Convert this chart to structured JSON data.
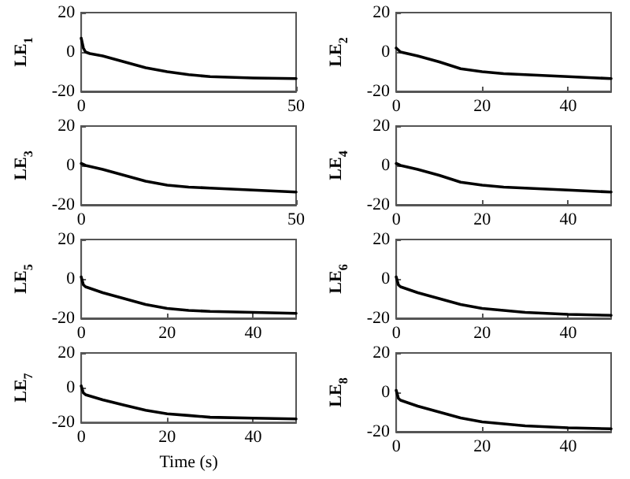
{
  "chart_data": [
    {
      "type": "line",
      "ylabel": "LE$_{1}$",
      "xlim": [
        0,
        50
      ],
      "xticks": [
        0,
        50
      ],
      "ylim": [
        -20,
        20
      ],
      "yticks": [
        -20,
        0,
        20
      ],
      "grid": false,
      "marker": "none",
      "x": [
        0,
        0.5,
        1,
        2,
        5,
        10,
        15,
        20,
        25,
        30,
        40,
        50
      ],
      "series": [
        {
          "color": "#000000",
          "values": [
            7,
            2,
            0,
            -0.8,
            -2,
            -5,
            -8,
            -10,
            -11.5,
            -12.5,
            -13.2,
            -13.5
          ]
        }
      ]
    },
    {
      "type": "line",
      "ylabel": "LE$_{2}$",
      "xlim": [
        0,
        50
      ],
      "xticks": [
        0,
        20,
        40
      ],
      "ylim": [
        -20,
        20
      ],
      "yticks": [
        -20,
        0,
        20
      ],
      "grid": false,
      "marker": "none",
      "x": [
        0,
        1,
        5,
        10,
        15,
        20,
        25,
        30,
        40,
        50
      ],
      "series": [
        {
          "color": "#000000",
          "values": [
            2,
            0,
            -2,
            -5,
            -8.5,
            -10,
            -11,
            -11.5,
            -12.5,
            -13.5
          ]
        }
      ]
    },
    {
      "type": "line",
      "ylabel": "LE$_{3}$",
      "xlim": [
        0,
        50
      ],
      "xticks": [
        0,
        50
      ],
      "ylim": [
        -20,
        20
      ],
      "yticks": [
        -20,
        0,
        20
      ],
      "grid": false,
      "marker": "none",
      "x": [
        0,
        1,
        5,
        10,
        15,
        20,
        25,
        30,
        40,
        50
      ],
      "series": [
        {
          "color": "#000000",
          "values": [
            1,
            0,
            -2,
            -5,
            -8,
            -10,
            -11,
            -11.5,
            -12.5,
            -13.5
          ]
        }
      ]
    },
    {
      "type": "line",
      "ylabel": "LE$_{4}$",
      "xlim": [
        0,
        50
      ],
      "xticks": [
        0,
        20,
        40
      ],
      "ylim": [
        -20,
        20
      ],
      "yticks": [
        -20,
        0,
        20
      ],
      "grid": false,
      "marker": "none",
      "x": [
        0,
        1,
        5,
        10,
        15,
        20,
        25,
        30,
        40,
        50
      ],
      "series": [
        {
          "color": "#000000",
          "values": [
            1,
            0,
            -2,
            -5,
            -8.5,
            -10,
            -11,
            -11.5,
            -12.5,
            -13.5
          ]
        }
      ]
    },
    {
      "type": "line",
      "ylabel": "LE$_{5}$",
      "xlim": [
        0,
        50
      ],
      "xticks": [
        0,
        20,
        40
      ],
      "ylim": [
        -20,
        20
      ],
      "yticks": [
        -20,
        0,
        20
      ],
      "grid": false,
      "marker": "none",
      "x": [
        0,
        0.5,
        1,
        5,
        10,
        15,
        20,
        25,
        30,
        40,
        50
      ],
      "series": [
        {
          "color": "#000000",
          "values": [
            1,
            -3,
            -4,
            -7,
            -10,
            -13,
            -15,
            -16,
            -16.5,
            -17,
            -17.5
          ]
        }
      ]
    },
    {
      "type": "line",
      "ylabel": "LE$_{6}$",
      "xlim": [
        0,
        50
      ],
      "xticks": [
        0,
        20,
        40
      ],
      "ylim": [
        -20,
        20
      ],
      "yticks": [
        -20,
        0,
        20
      ],
      "grid": false,
      "marker": "none",
      "x": [
        0,
        0.5,
        1,
        5,
        10,
        15,
        20,
        25,
        30,
        40,
        50
      ],
      "series": [
        {
          "color": "#000000",
          "values": [
            1,
            -3,
            -4,
            -7,
            -10,
            -13,
            -15,
            -16,
            -17,
            -18,
            -18.5
          ]
        }
      ]
    },
    {
      "type": "line",
      "xlabel": "Time (s)",
      "ylabel": "LE$_{7}$",
      "xlim": [
        0,
        50
      ],
      "xticks": [
        0,
        20,
        40
      ],
      "ylim": [
        -20,
        20
      ],
      "yticks": [
        -20,
        0,
        20
      ],
      "grid": false,
      "marker": "none",
      "x": [
        0,
        0.5,
        1,
        5,
        10,
        15,
        20,
        25,
        30,
        40,
        50
      ],
      "series": [
        {
          "color": "#000000",
          "values": [
            1,
            -3,
            -4,
            -7,
            -10,
            -13,
            -15,
            -16,
            -17,
            -17.5,
            -18
          ]
        }
      ]
    },
    {
      "type": "line",
      "ylabel": "LE$_{8}$",
      "xlim": [
        0,
        50
      ],
      "xticks": [
        0,
        20,
        40
      ],
      "ylim": [
        -20,
        20
      ],
      "yticks": [
        -20,
        0,
        20
      ],
      "grid": false,
      "marker": "none",
      "x": [
        0,
        0.5,
        1,
        5,
        10,
        15,
        20,
        25,
        30,
        40,
        50
      ],
      "series": [
        {
          "color": "#000000",
          "values": [
            1,
            -3,
            -4,
            -7,
            -10,
            -13,
            -15,
            -16,
            -17,
            -18,
            -18.5
          ]
        }
      ]
    }
  ]
}
